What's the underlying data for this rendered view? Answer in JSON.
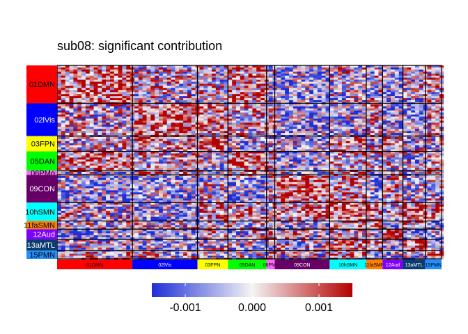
{
  "chart_data": {
    "type": "heatmap",
    "title": "sub08: significant contribution",
    "networks": [
      {
        "label": "01DMN",
        "color": "#ff0000",
        "size": 37,
        "text_color": "#000000"
      },
      {
        "label": "02lVis",
        "color": "#0000ff",
        "size": 32,
        "text_color": "#ffffff"
      },
      {
        "label": "03FPN",
        "color": "#ffff00",
        "size": 15,
        "text_color": "#000000"
      },
      {
        "label": "05DAN",
        "color": "#00ff00",
        "size": 19,
        "text_color": "#000000"
      },
      {
        "label": "06PMo",
        "color": "#ff66ff",
        "size": 4,
        "text_color": "#000000"
      },
      {
        "label": "09CON",
        "color": "#660066",
        "size": 27,
        "text_color": "#ffffff"
      },
      {
        "label": "10hSMN",
        "color": "#00ffff",
        "size": 18,
        "text_color": "#000000"
      },
      {
        "label": "11faSMN",
        "color": "#ff8000",
        "size": 8,
        "text_color": "#000000"
      },
      {
        "label": "12Aud",
        "color": "#8000ff",
        "size": 10,
        "text_color": "#ffffff"
      },
      {
        "label": "13aMTL",
        "color": "#0a3c6e",
        "size": 11,
        "text_color": "#ffffff"
      },
      {
        "label": "15PMN",
        "color": "#1f8fff",
        "size": 8,
        "text_color": "#000000"
      }
    ],
    "colorscale": {
      "min": -0.0015,
      "max": 0.0015,
      "low_color": "#1f2fd6",
      "mid_color": "#f4f4f4",
      "high_color": "#b50000",
      "ticks": [
        -0.001,
        0.0,
        0.001
      ],
      "tick_labels": [
        "-0.001",
        "0.000",
        "0.001"
      ]
    },
    "legend_position": "bottom"
  }
}
